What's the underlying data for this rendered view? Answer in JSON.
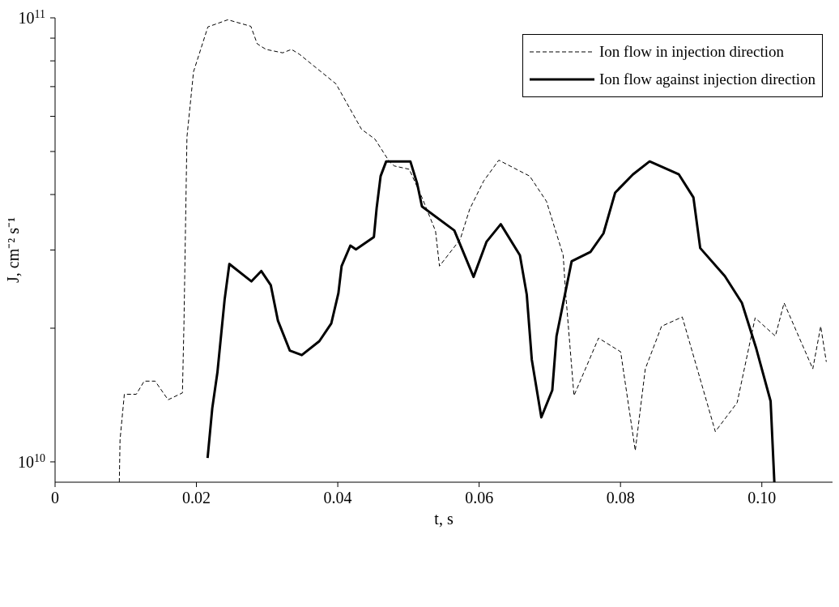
{
  "chart_data": {
    "type": "line",
    "xlabel": "t, s",
    "ylabel": "J, cm⁻² s⁻¹",
    "log": "y",
    "legend": "top right",
    "marker": "none",
    "xlim": [
      0,
      0.11
    ],
    "xticks": [
      0,
      0.02,
      0.04,
      0.06,
      0.08,
      {
        "value": 0.1,
        "label": "0.10"
      }
    ],
    "ylim": [
      9000000000.0,
      100000000000.0
    ],
    "yticks": [
      {
        "value": 10000000000.0,
        "label": "10$^{10}$"
      },
      {
        "value": 20000000000.0,
        "label": null
      },
      {
        "value": 30000000000.0,
        "label": null
      },
      {
        "value": 40000000000.0,
        "label": null
      },
      {
        "value": 50000000000.0,
        "label": null
      },
      {
        "value": 60000000000.0,
        "label": null
      },
      {
        "value": 70000000000.0,
        "label": null
      },
      {
        "value": 80000000000.0,
        "label": null
      },
      {
        "value": 90000000000.0,
        "label": null
      },
      {
        "value": 100000000000.0,
        "label": "10$^{11}$"
      }
    ],
    "series": [
      {
        "name": "Ion flow in injection direction",
        "color": "#000000",
        "line_style": "dashed",
        "x": [
          0.00909,
          0.00919,
          0.0098,
          0.01149,
          0.01261,
          0.01416,
          0.01599,
          0.01802,
          0.01824,
          0.01866,
          0.01959,
          0.02162,
          0.02444,
          0.0277,
          0.0286,
          0.02984,
          0.03221,
          0.03345,
          0.03457,
          0.03975,
          0.04336,
          0.04527,
          0.04724,
          0.04797,
          0.05011,
          0.05191,
          0.05383,
          0.05439,
          0.05732,
          0.05867,
          0.06064,
          0.06278,
          0.06716,
          0.06953,
          0.07189,
          0.07225,
          0.07342,
          0.0769,
          0.08002,
          0.08209,
          0.08351,
          0.08581,
          0.08874,
          0.09342,
          0.09651,
          0.09905,
          0.10191,
          0.10315,
          0.10721,
          0.10833,
          0.10912
        ],
        "values": [
          9000000000.0,
          11200000000.0,
          14200000000.0,
          14200000000.0,
          15200000000.0,
          15200000000.0,
          13800000000.0,
          14300000000.0,
          20600000000.0,
          53900000000.0,
          75600000000.0,
          95400000000.0,
          99000000000.0,
          95700000000.0,
          87400000000.0,
          84900000000.0,
          83400000000.0,
          84900000000.0,
          82800000000.0,
          71000000000.0,
          56100000000.0,
          53300000000.0,
          47600000000.0,
          46400000000.0,
          45600000000.0,
          39400000000.0,
          33100000000.0,
          27600000000.0,
          31700000000.0,
          37100000000.0,
          42900000000.0,
          47800000000.0,
          44000000000.0,
          38600000000.0,
          29200000000.0,
          23900000000.0,
          14100000000.0,
          19000000000.0,
          17700000000.0,
          10600000000.0,
          16200000000.0,
          20200000000.0,
          21200000000.0,
          11700000000.0,
          13600000000.0,
          21100000000.0,
          19200000000.0,
          22800000000.0,
          16200000000.0,
          20200000000.0,
          16800000000.0
        ]
      },
      {
        "name": "Ion flow against injection direction",
        "color": "#000000",
        "line_style": "solid",
        "x": [
          0.02158,
          0.02224,
          0.02297,
          0.02399,
          0.02466,
          0.02777,
          0.02917,
          0.03052,
          0.03153,
          0.03322,
          0.03491,
          0.03739,
          0.03908,
          0.04009,
          0.04054,
          0.04178,
          0.04257,
          0.04511,
          0.0455,
          0.04606,
          0.04685,
          0.05027,
          0.05124,
          0.05191,
          0.05649,
          0.05921,
          0.06104,
          0.06306,
          0.06577,
          0.06674,
          0.06745,
          0.0688,
          0.07035,
          0.07095,
          0.07309,
          0.07575,
          0.07759,
          0.07925,
          0.08176,
          0.08412,
          0.08826,
          0.09032,
          0.09128,
          0.09477,
          0.09718,
          0.09921,
          0.10124,
          0.10177
        ],
        "values": [
          10200000000.0,
          13200000000.0,
          15900000000.0,
          23200000000.0,
          27900000000.0,
          25500000000.0,
          26900000000.0,
          25000000000.0,
          20800000000.0,
          17800000000.0,
          17400000000.0,
          18700000000.0,
          20500000000.0,
          24000000000.0,
          27600000000.0,
          30700000000.0,
          30100000000.0,
          32100000000.0,
          37300000000.0,
          44000000000.0,
          47500000000.0,
          47500000000.0,
          42300000000.0,
          37600000000.0,
          33200000000.0,
          26100000000.0,
          31300000000.0,
          34300000000.0,
          29200000000.0,
          23800000000.0,
          17000000000.0,
          12600000000.0,
          14500000000.0,
          19200000000.0,
          28300000000.0,
          29700000000.0,
          32700000000.0,
          40400000000.0,
          44400000000.0,
          47500000000.0,
          44400000000.0,
          39400000000.0,
          30300000000.0,
          26200000000.0,
          22800000000.0,
          18000000000.0,
          13700000000.0,
          9000000000.0
        ]
      }
    ]
  }
}
